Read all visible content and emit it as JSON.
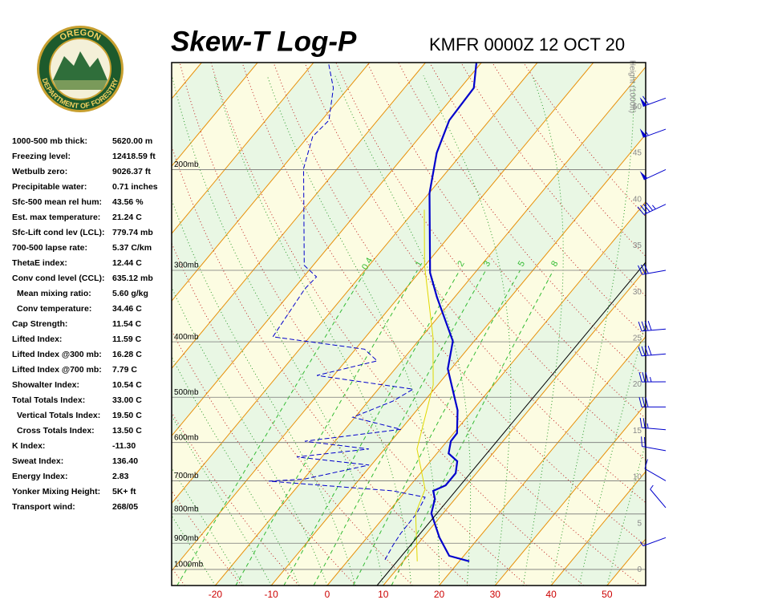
{
  "header": {
    "logo_top": "OREGON",
    "logo_bottom": "DEPARTMENT OF FORESTRY"
  },
  "indices": {
    "rows": [
      [
        "1000-500 mb thick:",
        "5620.00 m"
      ],
      [
        "Freezing level:",
        "12418.59 ft"
      ],
      [
        "Wetbulb zero:",
        "9026.37 ft"
      ],
      [
        "Precipitable water:",
        "0.71 inches"
      ],
      [
        "Sfc-500 mean rel hum:",
        "43.56 %"
      ],
      [
        "Est. max temperature:",
        "21.24 C"
      ],
      [
        "Sfc-Lift cond lev (LCL):",
        "779.74 mb"
      ],
      [
        "700-500 lapse rate:",
        "5.37 C/km"
      ],
      [
        "ThetaE index:",
        "12.44 C"
      ],
      [
        "Conv cond level (CCL):",
        "635.12 mb"
      ],
      [
        "Mean mixing ratio:",
        "5.60 g/kg"
      ],
      [
        "Conv temperature:",
        "34.46 C"
      ],
      [
        "Cap Strength:",
        "11.54 C"
      ],
      [
        "Lifted Index:",
        "11.59 C"
      ],
      [
        "Lifted Index @300 mb:",
        "16.28 C"
      ],
      [
        "Lifted Index @700 mb:",
        "7.79 C"
      ],
      [
        "Showalter Index:",
        "10.54 C"
      ],
      [
        "Total Totals Index:",
        "33.00 C"
      ],
      [
        "Vertical Totals Index:",
        "19.50 C"
      ],
      [
        "Cross Totals Index:",
        "13.50 C"
      ],
      [
        "K Index:",
        "-11.30"
      ],
      [
        "Sweat Index:",
        "136.40"
      ],
      [
        "Energy Index:",
        "2.83"
      ],
      [
        "Yonker Mixing Height:",
        "5K+ ft"
      ],
      [
        "Transport wind:",
        "268/05"
      ]
    ]
  },
  "chart_data": {
    "type": "skewt",
    "title": "Skew-T Log-P",
    "subtitle": "KMFR 0000Z 12 OCT 20",
    "xlim": [
      -27.8,
      56.9
    ],
    "xticks": [
      -20,
      -10,
      0,
      10,
      20,
      30,
      40,
      50
    ],
    "ylim": [
      1067,
      130
    ],
    "ylog": true,
    "yticks": [
      {
        "value": 200,
        "label": "200mb"
      },
      {
        "value": 300,
        "label": "300mb"
      },
      {
        "value": 400,
        "label": "400mb"
      },
      {
        "value": 500,
        "label": "500mb"
      },
      {
        "value": 600,
        "label": "600mb"
      },
      {
        "value": 700,
        "label": "700mb"
      },
      {
        "value": 800,
        "label": "800mb"
      },
      {
        "value": 900,
        "label": "900mb"
      },
      {
        "value": 1000,
        "label": "1000mb"
      }
    ],
    "y2label": "Height (1000ft)",
    "y2lim": [
      -1.7,
      54.8
    ],
    "y2ticks": [
      0,
      5,
      10,
      15,
      20,
      25,
      30,
      35,
      40,
      45,
      50
    ],
    "mixing_ratios": [
      0.4,
      1,
      2,
      3,
      5,
      8
    ],
    "series": [
      {
        "color": "#0000cc",
        "style": "solid",
        "pressure": [
          968,
          947,
          879,
          798,
          753,
          729,
          713,
          679,
          647,
          627,
          597,
          578,
          527,
          502,
          446,
          399,
          334,
          303,
          220,
          187,
          164,
          144,
          130
        ],
        "values": [
          21.8,
          17.4,
          12.9,
          7.9,
          6.4,
          4.9,
          6.3,
          6.3,
          4.8,
          2.1,
          0.7,
          0.6,
          -2.7,
          -5.0,
          -10.6,
          -13.8,
          -23.2,
          -28.0,
          -39.9,
          -44.6,
          -47.2,
          -47.6,
          -50.9
        ]
      },
      {
        "color": "#0000cc",
        "style": "dashed",
        "pressure": [
          962,
          908,
          865,
          798,
          748,
          729,
          701,
          695,
          657,
          636,
          616,
          597,
          569,
          542,
          508,
          484,
          458,
          432,
          412,
          392,
          323,
          308,
          294,
          199,
          175,
          164,
          144,
          131
        ],
        "values": [
          6.5,
          5.8,
          5.4,
          5.3,
          4.4,
          -2.3,
          -25.9,
          -19.8,
          -10.4,
          -24.5,
          -12.8,
          -25.4,
          -10.0,
          -20.4,
          -15.6,
          -13.8,
          -33.0,
          -24.4,
          -28.4,
          -46.6,
          -48.0,
          -47.7,
          -51.6,
          -66.1,
          -69.2,
          -68.7,
          -72.7,
          -77.0
        ]
      },
      {
        "color": "#e0d800",
        "style": "thin",
        "pressure": [
          968,
          798,
          724,
          616,
          476,
          392,
          294,
          235
        ],
        "values": [
          12.5,
          5.1,
          3.2,
          -4.2,
          -10.8,
          -18.0,
          -30.1,
          -38.4
        ]
      }
    ],
    "winds": {
      "pressure": [
        150,
        170,
        200,
        230,
        300,
        380,
        420,
        470,
        520,
        570,
        620,
        700,
        780,
        880
      ],
      "direction": [
        250,
        250,
        245,
        245,
        260,
        265,
        265,
        270,
        270,
        275,
        280,
        300,
        320,
        250
      ],
      "speed": [
        60,
        55,
        50,
        45,
        30,
        40,
        40,
        35,
        30,
        25,
        20,
        10,
        8,
        5
      ],
      "color": "#0000cc"
    }
  }
}
